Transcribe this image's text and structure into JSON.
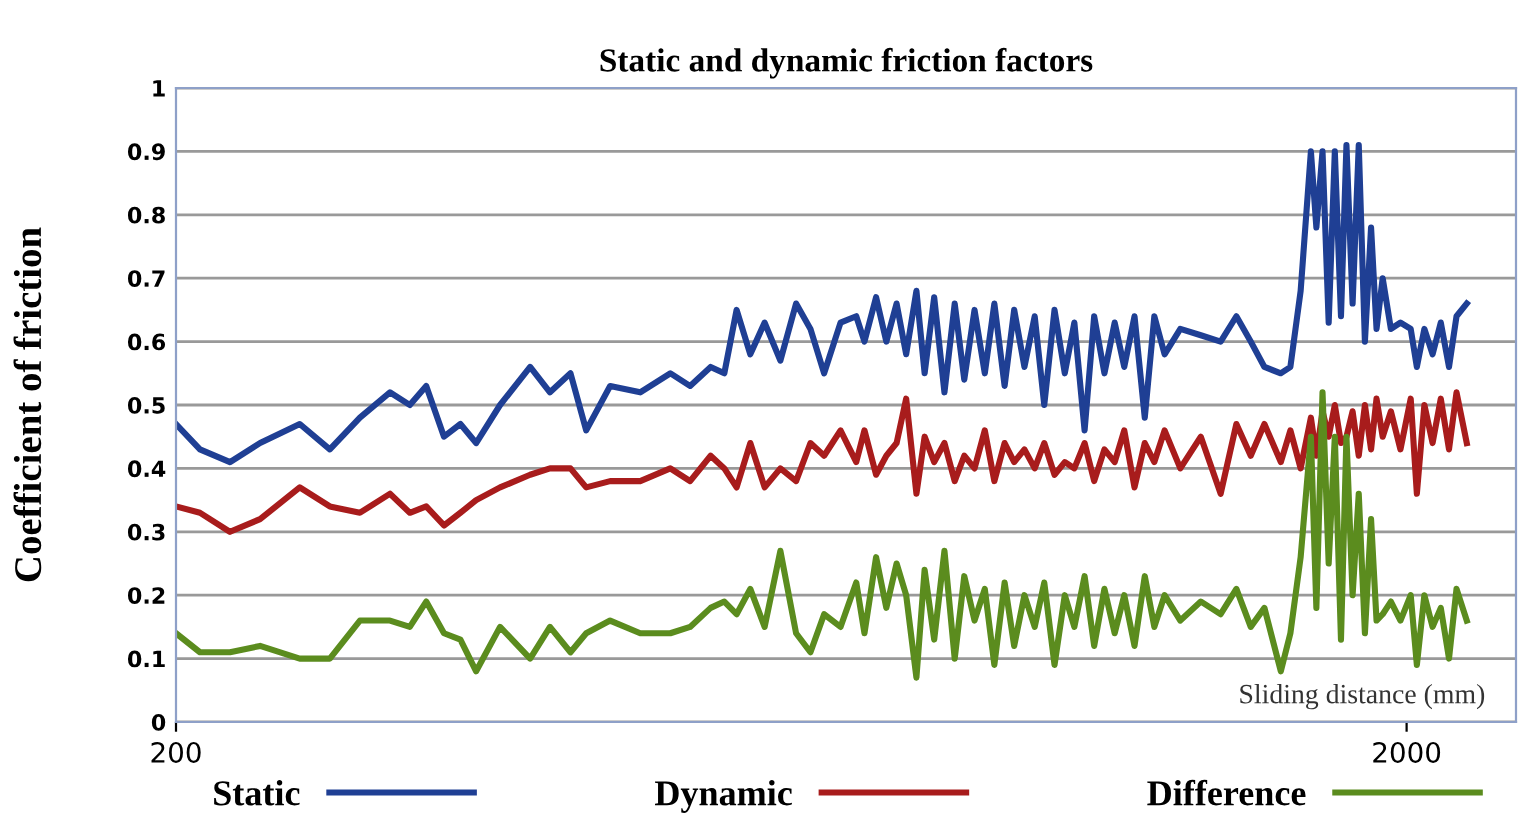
{
  "chart_data": {
    "type": "line",
    "title": "Static and dynamic friction factors",
    "xlabel": "Sliding distance (mm)",
    "ylabel": "Coefficient of friction",
    "x": [
      200,
      235,
      279,
      323,
      381,
      425,
      469,
      513,
      542,
      566,
      592,
      616,
      639,
      674,
      718,
      747,
      777,
      800,
      835,
      879,
      923,
      952,
      982,
      1002,
      1020,
      1040,
      1061,
      1084,
      1107,
      1128,
      1148,
      1172,
      1195,
      1207,
      1224,
      1239,
      1254,
      1268,
      1283,
      1295,
      1309,
      1324,
      1339,
      1353,
      1368,
      1383,
      1397,
      1412,
      1426,
      1441,
      1456,
      1470,
      1485,
      1500,
      1514,
      1529,
      1543,
      1558,
      1573,
      1587,
      1602,
      1617,
      1631,
      1646,
      1669,
      1699,
      1728,
      1751,
      1772,
      1792,
      1816,
      1830,
      1845,
      1860,
      1868,
      1877,
      1886,
      1895,
      1904,
      1912,
      1921,
      1930,
      1939,
      1948,
      1956,
      1965,
      1977,
      1991,
      2006,
      2015,
      2026,
      2038,
      2050,
      2062,
      2073,
      2088
    ],
    "series": [
      {
        "name": "Static",
        "color": "#1f3f94",
        "values": [
          0.47,
          0.43,
          0.41,
          0.44,
          0.47,
          0.43,
          0.48,
          0.52,
          0.5,
          0.53,
          0.45,
          0.47,
          0.44,
          0.5,
          0.56,
          0.52,
          0.55,
          0.46,
          0.53,
          0.52,
          0.55,
          0.53,
          0.56,
          0.55,
          0.65,
          0.58,
          0.63,
          0.57,
          0.66,
          0.62,
          0.55,
          0.63,
          0.64,
          0.6,
          0.67,
          0.6,
          0.66,
          0.58,
          0.68,
          0.55,
          0.67,
          0.52,
          0.66,
          0.54,
          0.65,
          0.55,
          0.66,
          0.53,
          0.65,
          0.56,
          0.64,
          0.5,
          0.65,
          0.55,
          0.63,
          0.46,
          0.64,
          0.55,
          0.63,
          0.56,
          0.64,
          0.48,
          0.64,
          0.58,
          0.62,
          0.61,
          0.6,
          0.64,
          0.6,
          0.56,
          0.55,
          0.56,
          0.68,
          0.9,
          0.78,
          0.9,
          0.63,
          0.9,
          0.64,
          0.91,
          0.66,
          0.91,
          0.6,
          0.78,
          0.62,
          0.7,
          0.62,
          0.63,
          0.62,
          0.56,
          0.62,
          0.58,
          0.63,
          0.56,
          0.64,
          0.66
        ]
      },
      {
        "name": "Dynamic",
        "color": "#a81c1c",
        "values": [
          0.34,
          0.33,
          0.3,
          0.32,
          0.37,
          0.34,
          0.33,
          0.36,
          0.33,
          0.34,
          0.31,
          0.33,
          0.35,
          0.37,
          0.39,
          0.4,
          0.4,
          0.37,
          0.38,
          0.38,
          0.4,
          0.38,
          0.42,
          0.4,
          0.37,
          0.44,
          0.37,
          0.4,
          0.38,
          0.44,
          0.42,
          0.46,
          0.41,
          0.46,
          0.39,
          0.42,
          0.44,
          0.51,
          0.36,
          0.45,
          0.41,
          0.44,
          0.38,
          0.42,
          0.4,
          0.46,
          0.38,
          0.44,
          0.41,
          0.43,
          0.4,
          0.44,
          0.39,
          0.41,
          0.4,
          0.44,
          0.38,
          0.43,
          0.41,
          0.46,
          0.37,
          0.44,
          0.41,
          0.46,
          0.4,
          0.45,
          0.36,
          0.47,
          0.42,
          0.47,
          0.41,
          0.46,
          0.4,
          0.48,
          0.42,
          0.49,
          0.45,
          0.5,
          0.44,
          0.45,
          0.49,
          0.42,
          0.5,
          0.43,
          0.51,
          0.45,
          0.49,
          0.43,
          0.51,
          0.36,
          0.5,
          0.44,
          0.51,
          0.43,
          0.52,
          0.44
        ]
      },
      {
        "name": "Difference",
        "color": "#5b8c1e",
        "values": [
          0.14,
          0.11,
          0.11,
          0.12,
          0.1,
          0.1,
          0.16,
          0.16,
          0.15,
          0.19,
          0.14,
          0.13,
          0.08,
          0.15,
          0.1,
          0.15,
          0.11,
          0.14,
          0.16,
          0.14,
          0.14,
          0.15,
          0.18,
          0.19,
          0.17,
          0.21,
          0.15,
          0.27,
          0.14,
          0.11,
          0.17,
          0.15,
          0.22,
          0.14,
          0.26,
          0.18,
          0.25,
          0.2,
          0.07,
          0.24,
          0.13,
          0.27,
          0.1,
          0.23,
          0.16,
          0.21,
          0.09,
          0.22,
          0.12,
          0.2,
          0.15,
          0.22,
          0.09,
          0.2,
          0.15,
          0.23,
          0.12,
          0.21,
          0.14,
          0.2,
          0.12,
          0.23,
          0.15,
          0.2,
          0.16,
          0.19,
          0.17,
          0.21,
          0.15,
          0.18,
          0.08,
          0.14,
          0.26,
          0.45,
          0.18,
          0.52,
          0.25,
          0.45,
          0.13,
          0.45,
          0.2,
          0.36,
          0.14,
          0.32,
          0.16,
          0.17,
          0.19,
          0.16,
          0.2,
          0.09,
          0.2,
          0.15,
          0.18,
          0.1,
          0.21,
          0.16
        ]
      }
    ],
    "xlim": [
      200,
      2160
    ],
    "xticks": [
      200,
      2000
    ],
    "ylim": [
      0,
      1
    ],
    "yticks": [
      0,
      0.1,
      0.2,
      0.3,
      0.4,
      0.5,
      0.6,
      0.7,
      0.8,
      0.9,
      1
    ],
    "grid": "y",
    "legend": "bottom",
    "marker": "none",
    "line_style": "solid"
  }
}
